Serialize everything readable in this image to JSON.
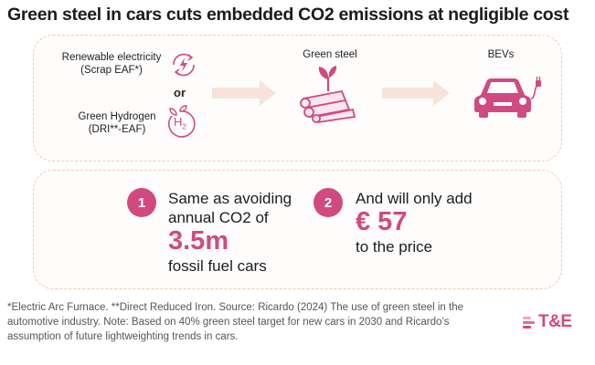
{
  "title": "Green steel in cars cuts embedded CO2 emissions at negligible cost",
  "flow": {
    "source1": {
      "line1": "Renewable electricity",
      "line2": "(Scrap EAF*)"
    },
    "or": "or",
    "source2": {
      "line1": "Green Hydrogen",
      "line2": "(DRI**-EAF)"
    },
    "h2_symbol": "H",
    "h2_sub": "2",
    "stage_green_steel": "Green steel",
    "stage_bevs": "BEVs"
  },
  "stats": [
    {
      "number": "1",
      "line1": "Same as avoiding",
      "line2": "annual CO2 of",
      "big": "3.5m",
      "line3": "fossil fuel cars"
    },
    {
      "number": "2",
      "line1": "And will only add",
      "big": "€ 57",
      "line2": "to the price"
    }
  ],
  "footnote": "*Electric Arc Furnace. **Direct Reduced Iron. Source: Ricardo (2024) The use of green steel in the automotive industry. Note: Based on 40% green steel target for new cars in 2030 and Ricardo’s assumption of future lightweighting trends in cars.",
  "logo": "T&E",
  "colors": {
    "accent": "#d04a80",
    "panel_border": "#f0c8b4",
    "arrow": "#f7e3da"
  }
}
